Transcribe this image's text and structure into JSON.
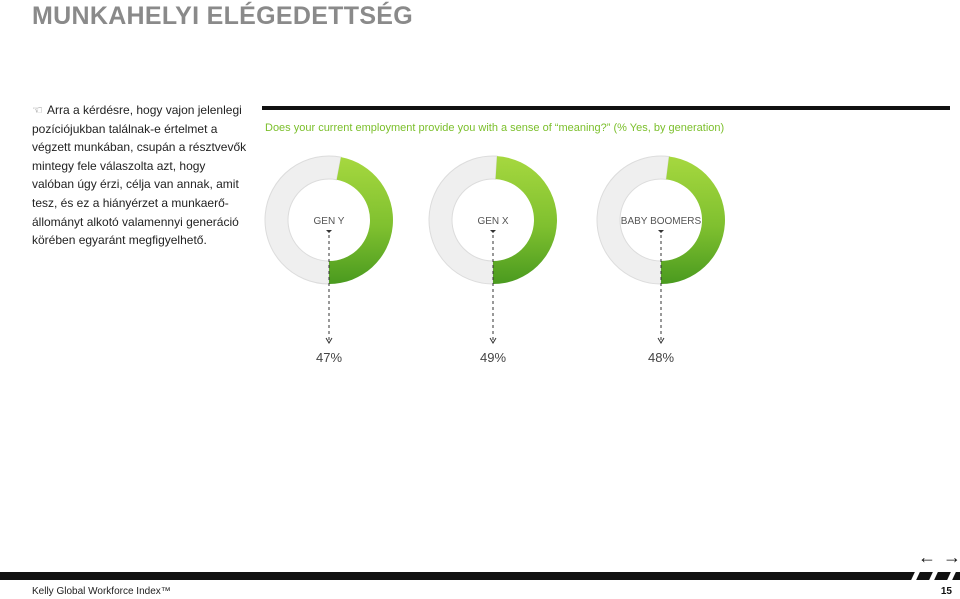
{
  "page": {
    "title": "MUNKAHELYI ELÉGEDETTSÉG",
    "intro_lines": [
      "Arra a kérdésre, hogy vajon jelenlegi",
      "pozíciójukban találnak-e értelmet a",
      "végzett munkában, csupán a résztvevők",
      "mintegy fele válaszolta azt, hogy",
      "valóban úgy érzi, célja van annak, amit",
      "tesz, és ez a hiányérzet a munkaerő-",
      "állományt alkotó valamennyi generáció",
      "körében egyaránt megfigyelhető."
    ],
    "intro_icon": "pointing-hand-icon",
    "footer_left": "Kelly Global Workforce Index™",
    "page_number": "15",
    "nav": {
      "prev_icon": "arrow-left-icon",
      "next_icon": "arrow-right-icon",
      "prev_glyph": "←",
      "next_glyph": "→"
    }
  },
  "chart_data": {
    "type": "pie",
    "subtype": "donut",
    "title": "Does your current employment provide you with a sense of “meaning?” (% Yes, by generation)",
    "categories": [
      "GEN Y",
      "GEN X",
      "BABY BOOMERS"
    ],
    "values": [
      47,
      49,
      48
    ],
    "value_labels": [
      "47%",
      "49%",
      "48%"
    ],
    "unit": "%",
    "colors": {
      "filled_light": "#9bd13a",
      "filled_dark": "#4e9c1e",
      "remainder": "#efefef",
      "remainder_stroke": "#dcdcdc",
      "accent_text": "#7bbf2b"
    }
  }
}
